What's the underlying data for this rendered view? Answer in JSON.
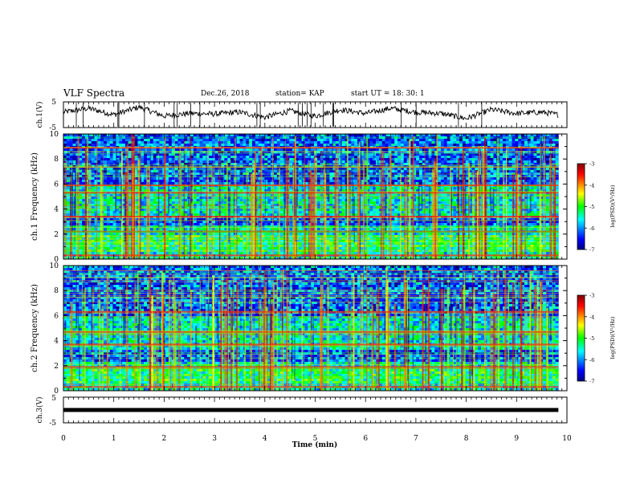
{
  "header": {
    "title": "VLF Spectra",
    "date": "Dec.26, 2018",
    "station": "station= KAP",
    "start": "start  UT =   18: 30: 1"
  },
  "chart_data": [
    {
      "type": "line",
      "panel": "ch1-waveform",
      "ylabel": "ch.1(V)",
      "ylim": [
        -5,
        5
      ],
      "yticks": [
        "5",
        "-5"
      ],
      "x_range_min": [
        0,
        9.83
      ],
      "series": [
        {
          "x": [
            0,
            0.5,
            1,
            1.5,
            2,
            2.5,
            3,
            3.5,
            4,
            4.5,
            5,
            5.5,
            6,
            6.5,
            7,
            7.5,
            8,
            8.5,
            9,
            9.5,
            9.83
          ],
          "values": [
            1,
            2.5,
            0,
            3,
            -0.5,
            0.5,
            0.3,
            1,
            -1,
            1.5,
            -0.5,
            2,
            0.5,
            2.5,
            1,
            0.5,
            -1.5,
            2,
            0.5,
            1,
            0
          ]
        }
      ]
    },
    {
      "type": "heatmap",
      "panel": "ch1-spectrogram",
      "ylabel": "ch.1 Frequency  (kHz)",
      "ylim": [
        0,
        10
      ],
      "yticks": [
        "0",
        "2",
        "4",
        "6",
        "8",
        "10"
      ],
      "colorbar": {
        "label": "log(PSD)(V²/Hz)",
        "range": [
          -7,
          -3
        ],
        "ticks": [
          "-3",
          "-4",
          "-5",
          "-6",
          "-7"
        ]
      },
      "strong_bands_khz": [
        0.3,
        2.2,
        3.4,
        5.3,
        5.9,
        8.9
      ]
    },
    {
      "type": "heatmap",
      "panel": "ch2-spectrogram",
      "ylabel": "ch.2 Frequency  (kHz)",
      "ylim": [
        0,
        10
      ],
      "yticks": [
        "0",
        "2",
        "4",
        "6",
        "8",
        "10"
      ],
      "colorbar": {
        "label": "log(PSD)(V²/Hz)",
        "range": [
          -7,
          -3
        ],
        "ticks": [
          "-3",
          "-4",
          "-5",
          "-6",
          "-7"
        ]
      },
      "strong_bands_khz": [
        0.3,
        1.9,
        3.7,
        4.7,
        6.3
      ]
    },
    {
      "type": "line",
      "panel": "ch3-waveform",
      "ylabel": "ch.3(V)",
      "ylim": [
        -5,
        5
      ],
      "yticks": [
        "5",
        "-5"
      ],
      "series": [
        {
          "x": [
            0,
            9.83
          ],
          "values": [
            0,
            0
          ]
        }
      ]
    }
  ],
  "time_axis": {
    "xlabel": "Time  (min)",
    "xlim": [
      0,
      10
    ],
    "ticks": [
      "0",
      "1",
      "2",
      "3",
      "4",
      "5",
      "6",
      "7",
      "8",
      "9",
      "10"
    ]
  },
  "colors": {
    "line": "#000000",
    "frame": "#000000"
  }
}
